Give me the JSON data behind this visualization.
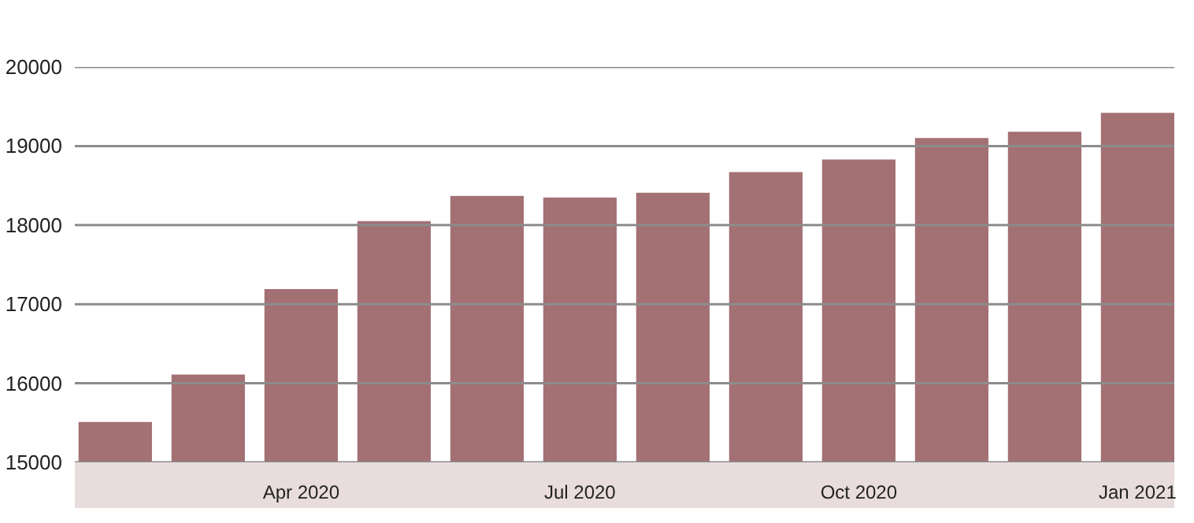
{
  "chart_data": {
    "type": "bar",
    "categories": [
      null,
      null,
      "Apr 2020",
      null,
      null,
      "Jul 2020",
      null,
      null,
      "Oct 2020",
      null,
      null,
      "Jan 2021"
    ],
    "values": [
      15510,
      16110,
      17190,
      18050,
      18370,
      18350,
      18410,
      18670,
      18830,
      19100,
      19180,
      19420
    ],
    "color": "#a37074",
    "ylim": [
      15000,
      20000
    ],
    "yticks": [
      15000,
      16000,
      17000,
      18000,
      19000,
      20000
    ],
    "grid": "y"
  }
}
